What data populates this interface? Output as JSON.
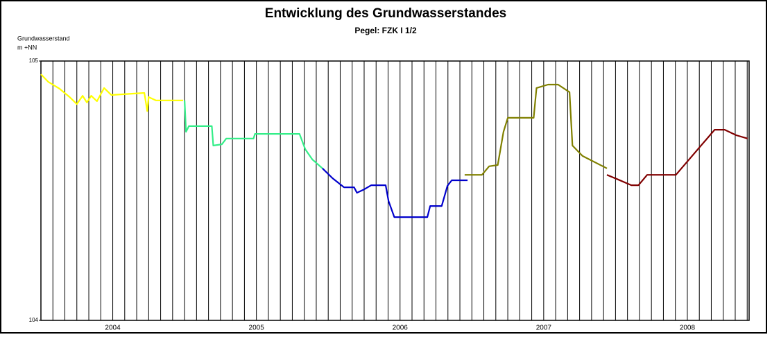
{
  "chart_data": {
    "type": "line",
    "title": "Entwicklung des Grundwasserstandes",
    "subtitle": "Pegel: FZK I 1/2",
    "ylabel": [
      "Grundwasserstand",
      "m +NN"
    ],
    "xlim": [
      2004,
      2008.93
    ],
    "ylim": [
      104,
      105
    ],
    "yticks": [
      104,
      105
    ],
    "xticks": [
      {
        "value": 2004.5,
        "label": "2004"
      },
      {
        "value": 2005.5,
        "label": "2005"
      },
      {
        "value": 2006.5,
        "label": "2006"
      },
      {
        "value": 2007.5,
        "label": "2007"
      },
      {
        "value": 2008.5,
        "label": "2008"
      }
    ],
    "x_grid_per_year": 12,
    "series": [
      {
        "color": "#ffff00",
        "x": [
          2004.0,
          2004.05,
          2004.13,
          2004.2,
          2004.25,
          2004.29,
          2004.32,
          2004.35,
          2004.39,
          2004.44,
          2004.49,
          2004.72,
          2004.74,
          2004.75,
          2004.8,
          2004.99
        ],
        "values": [
          104.949,
          104.92,
          104.893,
          104.861,
          104.834,
          104.866,
          104.84,
          104.866,
          104.845,
          104.896,
          104.869,
          104.877,
          104.807,
          104.861,
          104.848,
          104.848
        ]
      },
      {
        "color": "#33ee88",
        "x": [
          2005.0,
          2005.01,
          2005.03,
          2005.19,
          2005.2,
          2005.26,
          2005.29,
          2005.48,
          2005.49,
          2005.8,
          2005.84,
          2005.89,
          2005.96
        ],
        "values": [
          104.848,
          104.727,
          104.749,
          104.749,
          104.674,
          104.679,
          104.701,
          104.701,
          104.719,
          104.719,
          104.66,
          104.62,
          104.586
        ]
      },
      {
        "color": "#0000cc",
        "x": [
          2005.96,
          2006.03,
          2006.11,
          2006.18,
          2006.2,
          2006.25,
          2006.3,
          2006.4,
          2006.42,
          2006.46,
          2006.69,
          2006.71,
          2006.79,
          2006.83,
          2006.86,
          2006.97
        ],
        "values": [
          104.586,
          104.548,
          104.513,
          104.513,
          104.492,
          104.505,
          104.521,
          104.521,
          104.46,
          104.398,
          104.398,
          104.441,
          104.441,
          104.519,
          104.54,
          104.54
        ]
      },
      {
        "color": "#808000",
        "x": [
          2006.95,
          2007.07,
          2007.12,
          2007.18,
          2007.22,
          2007.25,
          2007.43,
          2007.45,
          2007.53,
          2007.6,
          2007.68,
          2007.7,
          2007.77,
          2007.94
        ],
        "values": [
          104.561,
          104.561,
          104.594,
          104.599,
          104.727,
          104.781,
          104.781,
          104.896,
          104.909,
          104.909,
          104.88,
          104.674,
          104.634,
          104.586
        ]
      },
      {
        "color": "#800000",
        "x": [
          2007.94,
          2008.01,
          2008.11,
          2008.16,
          2008.22,
          2008.42,
          2008.69,
          2008.76,
          2008.84,
          2008.92
        ],
        "values": [
          104.561,
          104.545,
          104.521,
          104.521,
          104.561,
          104.561,
          104.735,
          104.735,
          104.714,
          104.701
        ]
      }
    ]
  }
}
